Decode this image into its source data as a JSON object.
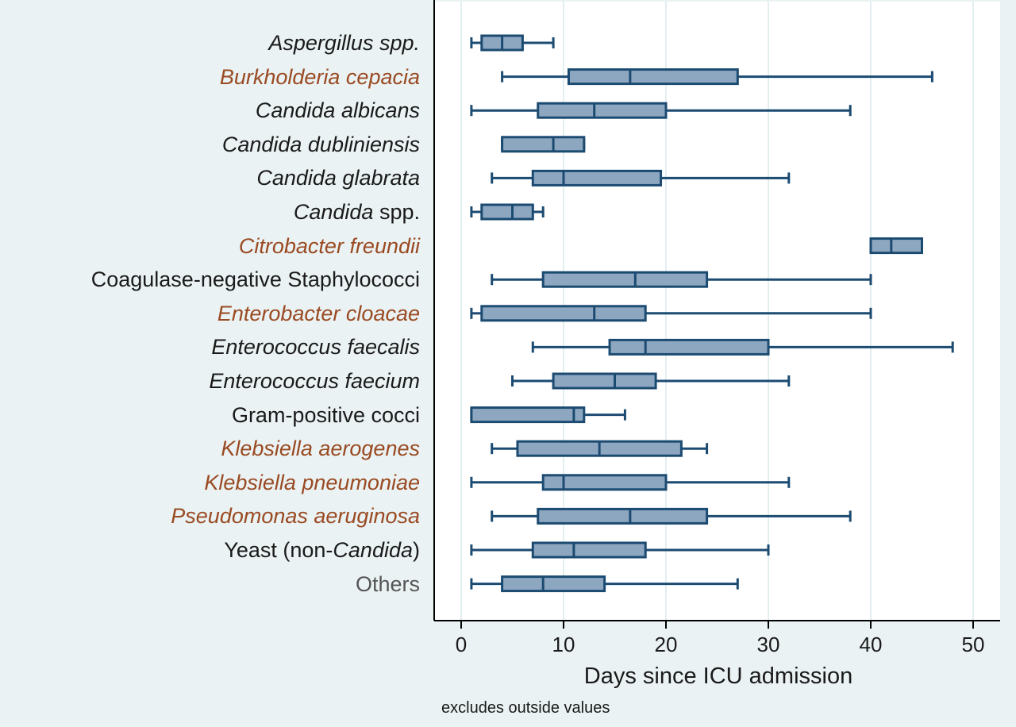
{
  "chart_data": {
    "type": "boxplot",
    "orientation": "horizontal",
    "xlabel": "Days since ICU admission",
    "xlim": [
      -2.5,
      52.5
    ],
    "xticks": [
      0,
      10,
      20,
      30,
      40,
      50
    ],
    "grid": true,
    "note": "excludes outside values",
    "colors": {
      "box_fill": "#8ea7c0",
      "box_stroke": "#1c4b72",
      "gram_negative_label": "#9a4a22",
      "grid": "#e3eef0"
    },
    "categories": [
      {
        "label": "Aspergillus spp.",
        "style": "italic",
        "group": "default",
        "min": 1,
        "q1": 2,
        "median": 4,
        "q3": 6,
        "max": 9
      },
      {
        "label": "Burkholderia cepacia",
        "style": "italic",
        "group": "gram-negative",
        "min": 4,
        "q1": 10.5,
        "median": 16.5,
        "q3": 27,
        "max": 46
      },
      {
        "label": "Candida albicans",
        "style": "italic",
        "group": "default",
        "min": 1,
        "q1": 7.5,
        "median": 13,
        "q3": 20,
        "max": 38
      },
      {
        "label": "Candida dubliniensis",
        "style": "italic",
        "group": "default",
        "min": 4,
        "q1": 4,
        "median": 9,
        "q3": 12,
        "max": 12
      },
      {
        "label": "Candida glabrata",
        "style": "italic",
        "group": "default",
        "min": 3,
        "q1": 7,
        "median": 10,
        "q3": 19.5,
        "max": 32
      },
      {
        "label_parts": [
          {
            "text": "Candida",
            "italic": true
          },
          {
            "text": " spp.",
            "italic": false
          }
        ],
        "group": "default",
        "min": 1,
        "q1": 2,
        "median": 5,
        "q3": 7,
        "max": 8
      },
      {
        "label": "Citrobacter freundii",
        "style": "italic",
        "group": "gram-negative",
        "min": 40,
        "q1": 40,
        "median": 42,
        "q3": 45,
        "max": 45
      },
      {
        "label": "Coagulase-negative Staphylococci",
        "style": "normal",
        "group": "default",
        "min": 3,
        "q1": 8,
        "median": 17,
        "q3": 24,
        "max": 40
      },
      {
        "label": "Enterobacter cloacae",
        "style": "italic",
        "group": "gram-negative",
        "min": 1,
        "q1": 2,
        "median": 13,
        "q3": 18,
        "max": 40
      },
      {
        "label": "Enterococcus faecalis",
        "style": "italic",
        "group": "default",
        "min": 7,
        "q1": 14.5,
        "median": 18,
        "q3": 30,
        "max": 48
      },
      {
        "label": "Enterococcus faecium",
        "style": "italic",
        "group": "default",
        "min": 5,
        "q1": 9,
        "median": 15,
        "q3": 19,
        "max": 32
      },
      {
        "label": "Gram-positive cocci",
        "style": "normal",
        "group": "default",
        "min": 1,
        "q1": 1,
        "median": 11,
        "q3": 12,
        "max": 16
      },
      {
        "label": "Klebsiella aerogenes",
        "style": "italic",
        "group": "gram-negative",
        "min": 3,
        "q1": 5.5,
        "median": 13.5,
        "q3": 21.5,
        "max": 24
      },
      {
        "label": "Klebsiella pneumoniae",
        "style": "italic",
        "group": "gram-negative",
        "min": 1,
        "q1": 8,
        "median": 10,
        "q3": 20,
        "max": 32
      },
      {
        "label": "Pseudomonas aeruginosa",
        "style": "italic",
        "group": "gram-negative",
        "min": 3,
        "q1": 7.5,
        "median": 16.5,
        "q3": 24,
        "max": 38
      },
      {
        "label_parts": [
          {
            "text": "Yeast (non-",
            "italic": false
          },
          {
            "text": "Candida",
            "italic": true
          },
          {
            "text": ")",
            "italic": false
          }
        ],
        "group": "default",
        "min": 1,
        "q1": 7,
        "median": 11,
        "q3": 18,
        "max": 30
      },
      {
        "label": "Others",
        "style": "normal",
        "group": "muted",
        "min": 1,
        "q1": 4,
        "median": 8,
        "q3": 14,
        "max": 27
      }
    ]
  }
}
